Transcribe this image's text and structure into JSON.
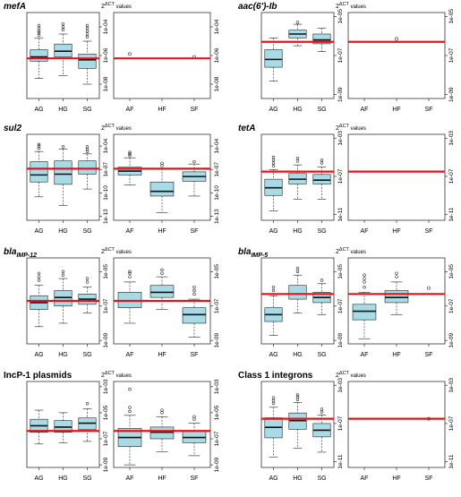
{
  "figure": {
    "y_axis_label": "2",
    "y_axis_label_sup": "ΔCT",
    "y_axis_label_suffix": " values"
  },
  "chart_data": [
    {
      "type": "boxplot",
      "title": "mefA",
      "title_italic": true,
      "title_sub": "",
      "yscale": "log",
      "left": {
        "ylim_log10": [
          -9,
          -3
        ],
        "yticks": [
          "1e-08",
          "1e-06",
          "1e-04"
        ],
        "categories": [
          "AG",
          "HG",
          "SG"
        ],
        "boxes": [
          {
            "min": -7.6,
            "q1": -6.4,
            "median": -6.1,
            "q3": -5.6,
            "max": -4.8,
            "outliers": [
              -4.4,
              -4.6,
              -4.3,
              -4.1,
              -3.9
            ]
          },
          {
            "min": -7.4,
            "q1": -6.1,
            "median": -5.7,
            "q3": -5.2,
            "max": -4.5,
            "outliers": [
              -4.2,
              -4.0,
              -3.8
            ]
          },
          {
            "min": -8.0,
            "q1": -6.9,
            "median": -6.3,
            "q3": -5.9,
            "max": -5.0,
            "outliers": [
              -4.7,
              -4.5,
              -4.3,
              -4.1,
              -3.9
            ]
          }
        ],
        "threshold_log10": -6.2
      },
      "right": {
        "ylim_log10": [
          -9,
          -3
        ],
        "yticks": [
          "1e-08",
          "1e-06",
          "1e-04"
        ],
        "categories": [
          "AF",
          "HF",
          "SF"
        ],
        "boxes": [
          {
            "point": -5.9
          },
          null,
          {
            "point": -6.1
          }
        ],
        "threshold_log10": -6.2
      }
    },
    {
      "type": "boxplot",
      "title": "aac(6')-Ib",
      "title_italic": true,
      "title_sub": "",
      "yscale": "log",
      "left": {
        "ylim_log10": [
          -9.2,
          -4.8
        ],
        "yticks": [
          "1e-09",
          "1e-07",
          "1e-05"
        ],
        "categories": [
          "AG",
          "HG",
          "SG"
        ],
        "boxes": [
          {
            "min": -8.3,
            "q1": -7.6,
            "median": -7.2,
            "q3": -6.7,
            "max": -6.1,
            "outliers": []
          },
          {
            "min": -6.5,
            "q1": -6.1,
            "median": -5.9,
            "q3": -5.7,
            "max": -5.4,
            "outliers": [
              -5.3
            ]
          },
          {
            "min": -6.8,
            "q1": -6.4,
            "median": -6.2,
            "q3": -5.9,
            "max": -5.6,
            "outliers": []
          }
        ],
        "threshold_log10": -6.3
      },
      "right": {
        "ylim_log10": [
          -9.2,
          -4.8
        ],
        "yticks": [
          "1e-09",
          "1e-07",
          "1e-05"
        ],
        "categories": [
          "AF",
          "HF",
          "SF"
        ],
        "boxes": [
          null,
          {
            "point": -6.15
          },
          null
        ],
        "threshold_log10": -6.3
      }
    },
    {
      "type": "boxplot",
      "title": "sul2",
      "title_italic": true,
      "title_sub": "",
      "yscale": "log",
      "left": {
        "ylim_log10": [
          -13.5,
          -2.5
        ],
        "yticks": [
          "1e-13",
          "1e-10",
          "1e-07",
          "1e-04"
        ],
        "categories": [
          "AG",
          "HG",
          "SG"
        ],
        "boxes": [
          {
            "min": -10.5,
            "q1": -8.6,
            "median": -7.7,
            "q3": -6.0,
            "max": -4.7,
            "outliers": [
              -4.3,
              -4.0,
              -3.8
            ]
          },
          {
            "min": -11.6,
            "q1": -8.9,
            "median": -7.6,
            "q3": -5.9,
            "max": -4.4,
            "outliers": [
              -4.1
            ]
          },
          {
            "min": -9.5,
            "q1": -7.6,
            "median": -6.9,
            "q3": -5.9,
            "max": -5.0,
            "outliers": [
              -4.7,
              -4.4,
              -4.1
            ]
          }
        ],
        "threshold_log10": -6.9
      },
      "right": {
        "ylim_log10": [
          -13.5,
          -2.5
        ],
        "yticks": [
          "1e-13",
          "1e-10",
          "1e-07",
          "1e-04"
        ],
        "categories": [
          "AF",
          "HF",
          "SF"
        ],
        "boxes": [
          {
            "min": -9.0,
            "q1": -7.7,
            "median": -7.2,
            "q3": -6.7,
            "max": -5.5,
            "outliers": [
              -5.2,
              -5.0,
              -4.8
            ]
          },
          {
            "min": -12.5,
            "q1": -10.4,
            "median": -9.8,
            "q3": -8.6,
            "max": -6.9,
            "outliers": [
              -6.5,
              -6.2
            ]
          },
          {
            "min": -10.4,
            "q1": -8.5,
            "median": -7.9,
            "q3": -7.3,
            "max": -6.3,
            "outliers": [
              -6.0
            ]
          }
        ],
        "threshold_log10": -6.9
      }
    },
    {
      "type": "boxplot",
      "title": "tetA",
      "title_italic": true,
      "title_sub": "",
      "yscale": "log",
      "left": {
        "ylim_log10": [
          -11.6,
          -2.6
        ],
        "yticks": [
          "1e-11",
          "1e-07",
          "1e-03"
        ],
        "categories": [
          "AG",
          "HG",
          "SG"
        ],
        "boxes": [
          {
            "min": -10.6,
            "q1": -9.0,
            "median": -8.2,
            "q3": -7.3,
            "max": -6.3,
            "outliers": [
              -5.9,
              -5.6,
              -5.3,
              -5.0
            ]
          },
          {
            "min": -9.4,
            "q1": -7.8,
            "median": -7.3,
            "q3": -6.7,
            "max": -5.8,
            "outliers": [
              -5.4,
              -5.1
            ]
          },
          {
            "min": -9.4,
            "q1": -7.8,
            "median": -7.4,
            "q3": -6.8,
            "max": -6.0,
            "outliers": [
              -5.6,
              -5.3
            ]
          }
        ],
        "threshold_log10": -6.5
      },
      "right": {
        "ylim_log10": [
          -11.6,
          -2.6
        ],
        "yticks": [
          "1e-11",
          "1e-07",
          "1e-03"
        ],
        "categories": [
          "AF",
          "HF",
          "SF"
        ],
        "boxes": [
          null,
          null,
          null
        ],
        "threshold_log10": -6.5
      }
    },
    {
      "type": "boxplot",
      "title": "bla",
      "title_italic": true,
      "title_sub": "IMP-12",
      "yscale": "log",
      "left": {
        "ylim_log10": [
          -9.2,
          -4.2
        ],
        "yticks": [
          "1e-09",
          "1e-07",
          "1e-05"
        ],
        "categories": [
          "AG",
          "HG",
          "SG"
        ],
        "boxes": [
          {
            "min": -8.2,
            "q1": -7.2,
            "median": -6.8,
            "q3": -6.4,
            "max": -5.8,
            "outliers": [
              -5.5,
              -5.3,
              -5.1
            ]
          },
          {
            "min": -8.0,
            "q1": -7.0,
            "median": -6.5,
            "q3": -6.1,
            "max": -5.4,
            "outliers": [
              -5.2,
              -5.0
            ]
          },
          {
            "min": -7.4,
            "q1": -6.9,
            "median": -6.6,
            "q3": -6.3,
            "max": -5.9,
            "outliers": [
              -5.6,
              -5.4
            ]
          }
        ],
        "threshold_log10": -6.7
      },
      "right": {
        "ylim_log10": [
          -9.2,
          -4.2
        ],
        "yticks": [
          "1e-09",
          "1e-07",
          "1e-05"
        ],
        "categories": [
          "AF",
          "HF",
          "SF"
        ],
        "boxes": [
          {
            "min": -8.0,
            "q1": -7.1,
            "median": -6.7,
            "q3": -6.2,
            "max": -5.6,
            "outliers": [
              -5.3,
              -5.1,
              -5.0
            ]
          },
          {
            "min": -7.2,
            "q1": -6.5,
            "median": -6.2,
            "q3": -5.8,
            "max": -5.3,
            "outliers": [
              -5.1,
              -4.9
            ]
          },
          {
            "min": -8.8,
            "q1": -8.0,
            "median": -7.5,
            "q3": -7.1,
            "max": -6.6,
            "outliers": [
              -6.3,
              -6.1,
              -5.9
            ]
          }
        ],
        "threshold_log10": -6.7
      }
    },
    {
      "type": "boxplot",
      "title": "bla",
      "title_italic": true,
      "title_sub": "IMP-5",
      "yscale": "log",
      "left": {
        "ylim_log10": [
          -9.2,
          -4.2
        ],
        "yticks": [
          "1e-09",
          "1e-07",
          "1e-05"
        ],
        "categories": [
          "AG",
          "HG",
          "SG"
        ],
        "boxes": [
          {
            "min": -8.7,
            "q1": -7.9,
            "median": -7.5,
            "q3": -7.1,
            "max": -6.4,
            "outliers": [
              -6.1,
              -5.9
            ]
          },
          {
            "min": -7.4,
            "q1": -6.6,
            "median": -6.3,
            "q3": -5.8,
            "max": -5.2,
            "outliers": [
              -5.0,
              -4.8
            ]
          },
          {
            "min": -7.5,
            "q1": -6.8,
            "median": -6.5,
            "q3": -6.2,
            "max": -5.7,
            "outliers": [
              -5.5
            ]
          }
        ],
        "threshold_log10": -6.3
      },
      "right": {
        "ylim_log10": [
          -9.2,
          -4.2
        ],
        "yticks": [
          "1e-09",
          "1e-07",
          "1e-05"
        ],
        "categories": [
          "AF",
          "HF",
          "SF"
        ],
        "boxes": [
          {
            "min": -8.9,
            "q1": -7.8,
            "median": -7.3,
            "q3": -6.9,
            "max": -6.2,
            "outliers": [
              -5.9,
              -5.6,
              -5.4,
              -5.2
            ]
          },
          {
            "min": -7.5,
            "q1": -6.8,
            "median": -6.5,
            "q3": -6.1,
            "max": -5.6,
            "outliers": [
              -5.3,
              -5.1
            ]
          },
          {
            "point": -5.95
          }
        ],
        "threshold_log10": -6.3
      }
    },
    {
      "type": "boxplot",
      "title": "IncP-1 plasmids",
      "title_italic": false,
      "title_sub": "",
      "yscale": "log",
      "left": {
        "ylim_log10": [
          -9.2,
          -2.6
        ],
        "yticks": [
          "1e-09",
          "1e-07",
          "1e-05",
          "1e-03"
        ],
        "categories": [
          "AG",
          "HG",
          "SG"
        ],
        "boxes": [
          {
            "min": -7.4,
            "q1": -6.5,
            "median": -6.0,
            "q3": -5.5,
            "max": -4.8,
            "outliers": []
          },
          {
            "min": -7.3,
            "q1": -6.5,
            "median": -6.1,
            "q3": -5.6,
            "max": -5.0,
            "outliers": []
          },
          {
            "min": -7.2,
            "q1": -6.3,
            "median": -5.8,
            "q3": -5.4,
            "max": -4.7,
            "outliers": [
              -4.3
            ]
          }
        ],
        "threshold_log10": -6.4
      },
      "right": {
        "ylim_log10": [
          -9.2,
          -2.6
        ],
        "yticks": [
          "1e-09",
          "1e-07",
          "1e-05",
          "1e-03"
        ],
        "categories": [
          "AF",
          "HF",
          "SF"
        ],
        "boxes": [
          {
            "min": -9.0,
            "q1": -7.6,
            "median": -6.9,
            "q3": -6.2,
            "max": -5.2,
            "outliers": [
              -4.9,
              -4.6,
              -3.2
            ]
          },
          {
            "min": -8.0,
            "q1": -7.0,
            "median": -6.5,
            "q3": -6.1,
            "max": -5.3,
            "outliers": [
              -5.0,
              -4.8
            ]
          },
          {
            "min": -8.3,
            "q1": -7.3,
            "median": -6.9,
            "q3": -6.4,
            "max": -5.8,
            "outliers": [
              -5.5,
              -5.3
            ]
          }
        ],
        "threshold_log10": -6.4
      }
    },
    {
      "type": "boxplot",
      "title": "Class 1 integrons",
      "title_italic": false,
      "title_sub": "",
      "yscale": "log",
      "left": {
        "ylim_log10": [
          -11.6,
          -2.6
        ],
        "yticks": [
          "1e-11",
          "1e-07",
          "1e-03"
        ],
        "categories": [
          "AG",
          "HG",
          "SG"
        ],
        "boxes": [
          {
            "min": -10.5,
            "q1": -8.5,
            "median": -7.4,
            "q3": -6.4,
            "max": -5.3,
            "outliers": [
              -4.9,
              -4.6,
              -4.3
            ]
          },
          {
            "min": -9.6,
            "q1": -7.6,
            "median": -6.7,
            "q3": -5.9,
            "max": -4.8,
            "outliers": [
              -4.5,
              -4.2,
              -4.0
            ]
          },
          {
            "min": -10.0,
            "q1": -8.4,
            "median": -7.7,
            "q3": -7.0,
            "max": -6.1,
            "outliers": [
              -5.8,
              -5.5
            ]
          }
        ],
        "threshold_log10": -6.5
      },
      "right": {
        "ylim_log10": [
          -11.6,
          -2.6
        ],
        "yticks": [
          "1e-11",
          "1e-07",
          "1e-03"
        ],
        "categories": [
          "AF",
          "HF",
          "SF"
        ],
        "boxes": [
          null,
          null,
          {
            "point": -6.5
          }
        ],
        "threshold_log10": -6.5
      }
    }
  ],
  "colors": {
    "box_fill": "#a9dbe6",
    "threshold": "#e3141b",
    "axis": "#333333"
  }
}
